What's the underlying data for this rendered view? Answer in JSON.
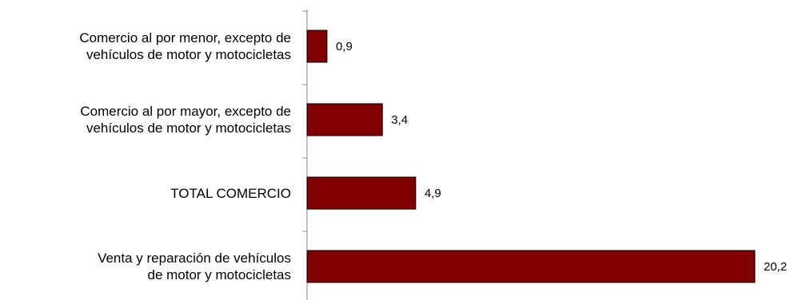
{
  "chart_data": {
    "type": "bar",
    "orientation": "horizontal",
    "categories": [
      "Comercio al por menor, excepto de\nvehículos de motor y motocicletas",
      "Comercio al por mayor, excepto de\nvehículos de motor y motocicletas",
      "TOTAL COMERCIO",
      "Venta y reparación de vehículos\nde motor y motocicletas"
    ],
    "values": [
      0.9,
      3.4,
      4.9,
      20.2
    ],
    "value_labels": [
      "0,9",
      "3,4",
      "4,9",
      "20,2"
    ],
    "color": "#800000"
  }
}
